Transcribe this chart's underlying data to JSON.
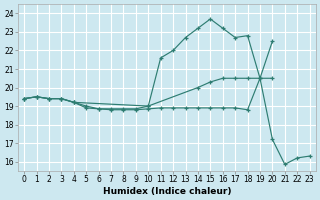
{
  "bg_color": "#cde8f0",
  "grid_color": "#b8d8e0",
  "line_color": "#2e7d72",
  "series": [
    {
      "x": [
        0,
        1,
        2,
        3,
        4,
        10,
        11,
        12,
        13,
        14,
        15,
        16,
        17,
        18,
        19,
        20
      ],
      "y": [
        19.4,
        19.5,
        19.4,
        19.4,
        19.2,
        19.0,
        21.6,
        22.0,
        22.7,
        23.2,
        23.7,
        23.2,
        22.7,
        22.8,
        20.5,
        22.5
      ]
    },
    {
      "x": [
        0,
        1,
        2,
        3,
        4,
        5,
        6,
        7,
        8,
        9,
        10,
        14,
        15,
        16,
        17,
        18,
        19,
        20
      ],
      "y": [
        19.4,
        19.5,
        19.4,
        19.4,
        19.2,
        19.0,
        18.85,
        18.85,
        18.85,
        18.85,
        19.0,
        20.0,
        20.3,
        20.5,
        20.5,
        20.5,
        20.5,
        20.5
      ]
    },
    {
      "x": [
        0,
        1,
        2,
        3,
        4,
        5,
        6,
        7,
        8,
        9,
        10,
        11,
        12,
        13,
        14,
        15,
        16,
        17,
        18,
        19,
        20,
        21,
        22,
        23
      ],
      "y": [
        19.4,
        19.5,
        19.4,
        19.4,
        19.2,
        18.9,
        18.85,
        18.8,
        18.8,
        18.8,
        18.85,
        18.9,
        18.9,
        18.9,
        18.9,
        18.9,
        18.9,
        18.9,
        18.8,
        20.5,
        17.2,
        15.85,
        16.2,
        16.3
      ]
    }
  ],
  "xlabel": "Humidex (Indice chaleur)",
  "xlim": [
    -0.5,
    23.5
  ],
  "ylim": [
    15.5,
    24.5
  ],
  "yticks": [
    16,
    17,
    18,
    19,
    20,
    21,
    22,
    23,
    24
  ],
  "xticks": [
    0,
    1,
    2,
    3,
    4,
    5,
    6,
    7,
    8,
    9,
    10,
    11,
    12,
    13,
    14,
    15,
    16,
    17,
    18,
    19,
    20,
    21,
    22,
    23
  ],
  "xlabel_fontsize": 6.5,
  "tick_fontsize": 5.5,
  "linewidth": 0.85,
  "markersize": 2.8
}
